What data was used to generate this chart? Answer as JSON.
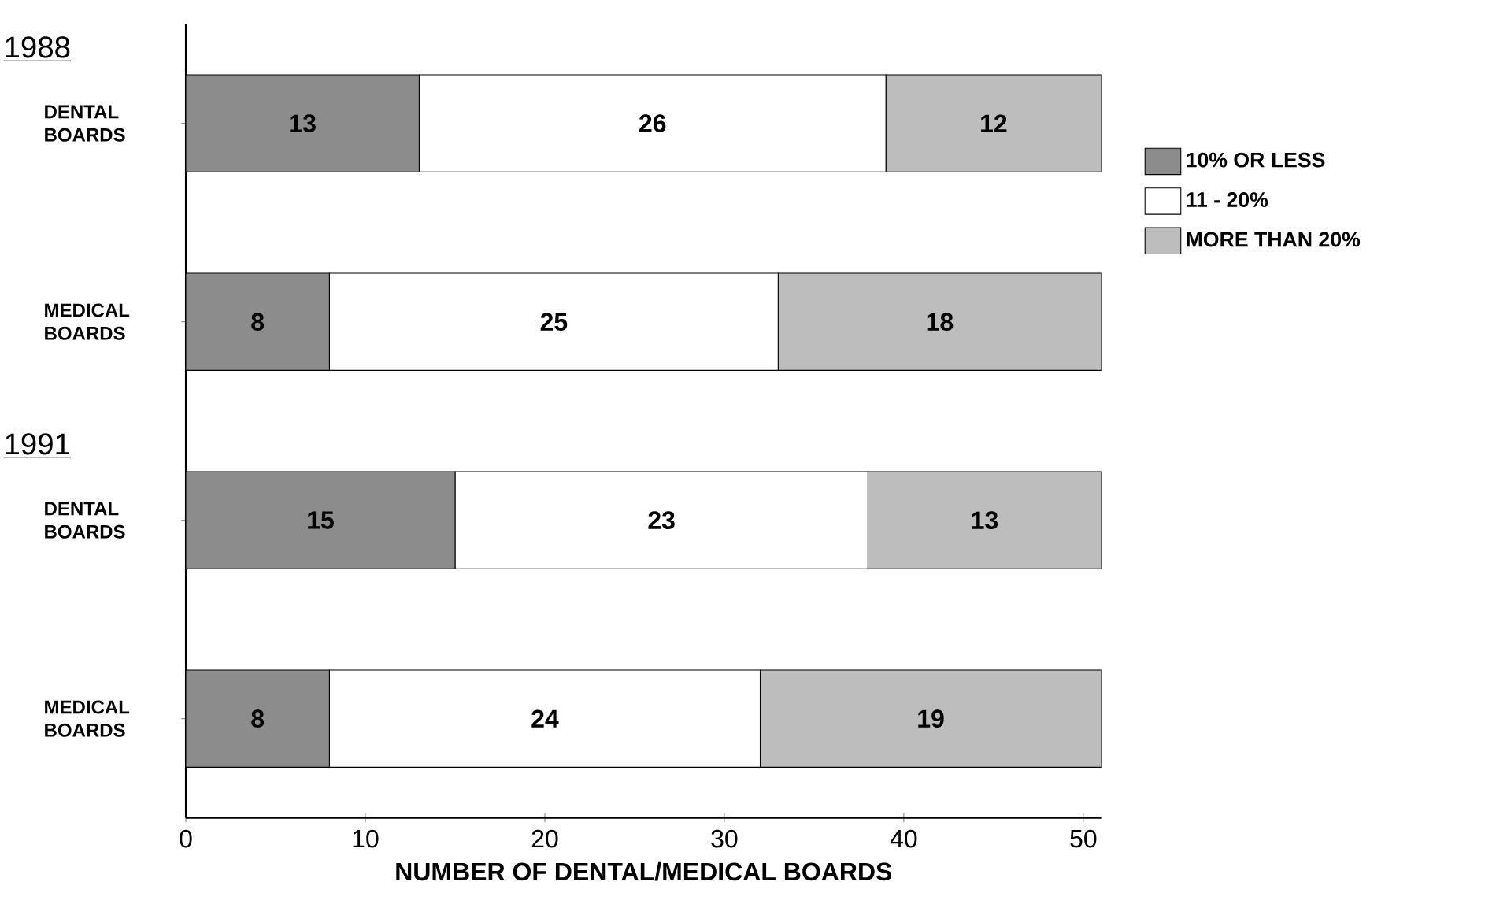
{
  "chart_data": {
    "type": "bar",
    "orientation": "horizontal",
    "stacked": true,
    "xlabel": "NUMBER OF DENTAL/MEDICAL BOARDS",
    "categories": [
      "DENTAL BOARDS",
      "MEDICAL BOARDS",
      "DENTAL BOARDS",
      "MEDICAL BOARDS"
    ],
    "annotations": [
      "1988",
      "1991"
    ],
    "series": [
      {
        "name": "10% OR LESS",
        "color": "#8c8c8c",
        "values": [
          13,
          8,
          15,
          8
        ]
      },
      {
        "name": "11 - 20%",
        "color": "#ffffff",
        "values": [
          26,
          25,
          23,
          24
        ]
      },
      {
        "name": "MORE THAN 20%",
        "color": "#bdbdbd",
        "values": [
          12,
          18,
          13,
          19
        ]
      }
    ],
    "xlim": [
      0,
      51
    ],
    "xticks": [
      0,
      10,
      20,
      30,
      40,
      50
    ],
    "data_labels": true,
    "legend": "right"
  }
}
